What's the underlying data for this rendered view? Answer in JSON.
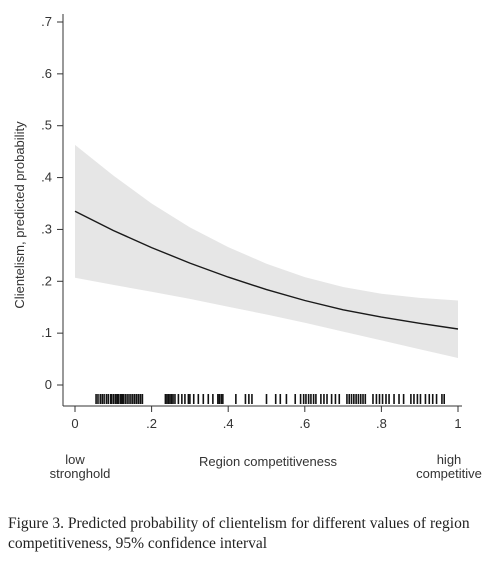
{
  "chart_data": {
    "type": "line",
    "ylabel": "Clientelism, predicted probability",
    "xlabel": "Region competitiveness",
    "x_end_labels": {
      "left": [
        "low",
        "stronghold"
      ],
      "right": [
        "high",
        "competitive"
      ]
    },
    "xlim": [
      0,
      1
    ],
    "ylim": [
      0,
      0.7
    ],
    "x_ticks": [
      {
        "value": 0,
        "label": "0"
      },
      {
        "value": 0.2,
        "label": ".2"
      },
      {
        "value": 0.4,
        "label": ".4"
      },
      {
        "value": 0.6,
        "label": ".6"
      },
      {
        "value": 0.8,
        "label": ".8"
      },
      {
        "value": 1,
        "label": "1"
      }
    ],
    "y_ticks": [
      {
        "value": 0,
        "label": "0"
      },
      {
        "value": 0.1,
        "label": ".1"
      },
      {
        "value": 0.2,
        "label": ".2"
      },
      {
        "value": 0.3,
        "label": ".3"
      },
      {
        "value": 0.4,
        "label": ".4"
      },
      {
        "value": 0.5,
        "label": ".5"
      },
      {
        "value": 0.6,
        "label": ".6"
      },
      {
        "value": 0.7,
        "label": ".7"
      }
    ],
    "grid": false,
    "series": [
      {
        "x": [
          0,
          0.1,
          0.2,
          0.3,
          0.4,
          0.5,
          0.6,
          0.7,
          0.8,
          0.9,
          1.0
        ],
        "y": [
          0.335,
          0.298,
          0.265,
          0.235,
          0.208,
          0.184,
          0.163,
          0.145,
          0.131,
          0.119,
          0.108
        ],
        "lower": [
          0.207,
          0.193,
          0.18,
          0.166,
          0.151,
          0.136,
          0.12,
          0.103,
          0.086,
          0.069,
          0.052
        ],
        "upper": [
          0.463,
          0.404,
          0.35,
          0.304,
          0.266,
          0.234,
          0.208,
          0.189,
          0.176,
          0.168,
          0.163
        ]
      }
    ],
    "rug_x": [
      0.055,
      0.06,
      0.066,
      0.071,
      0.076,
      0.082,
      0.087,
      0.093,
      0.096,
      0.101,
      0.106,
      0.11,
      0.113,
      0.118,
      0.122,
      0.126,
      0.131,
      0.136,
      0.141,
      0.146,
      0.151,
      0.156,
      0.161,
      0.166,
      0.171,
      0.176,
      0.236,
      0.24,
      0.244,
      0.248,
      0.252,
      0.256,
      0.261,
      0.27,
      0.279,
      0.287,
      0.296,
      0.3,
      0.31,
      0.322,
      0.335,
      0.348,
      0.36,
      0.373,
      0.377,
      0.382,
      0.386,
      0.42,
      0.445,
      0.454,
      0.462,
      0.5,
      0.524,
      0.536,
      0.552,
      0.575,
      0.589,
      0.597,
      0.603,
      0.61,
      0.616,
      0.623,
      0.629,
      0.642,
      0.65,
      0.658,
      0.67,
      0.68,
      0.69,
      0.71,
      0.716,
      0.722,
      0.728,
      0.734,
      0.74,
      0.746,
      0.752,
      0.758,
      0.778,
      0.787,
      0.795,
      0.803,
      0.812,
      0.82,
      0.833,
      0.846,
      0.858,
      0.877,
      0.885,
      0.894,
      0.902,
      0.915,
      0.925,
      0.934,
      0.944,
      0.958,
      0.964
    ]
  },
  "caption": "Figure 3. Predicted probability of clientelism for different values of region competitiveness, 95% confidence interval"
}
